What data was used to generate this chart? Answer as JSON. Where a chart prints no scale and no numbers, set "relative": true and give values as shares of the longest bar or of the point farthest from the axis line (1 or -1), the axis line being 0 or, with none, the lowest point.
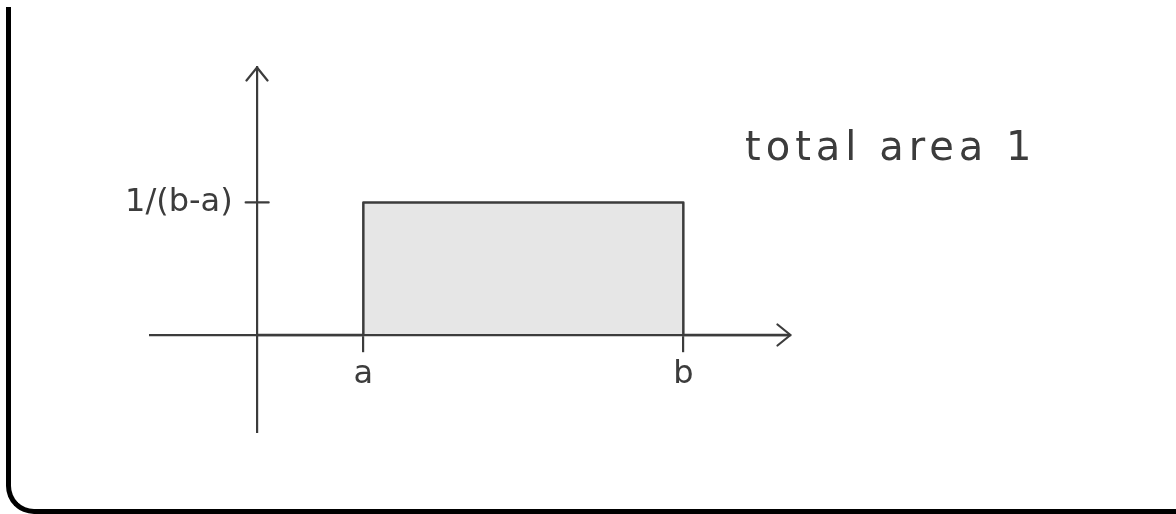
{
  "chart_data": {
    "type": "step",
    "categories": [
      null,
      "a",
      null,
      null,
      "b",
      null
    ],
    "values": [
      0,
      1,
      1,
      1,
      0,
      0
    ],
    "color": "#3c3c3c",
    "relative": true,
    "annotations": [
      "1/(b-a)",
      "total area 1"
    ]
  }
}
